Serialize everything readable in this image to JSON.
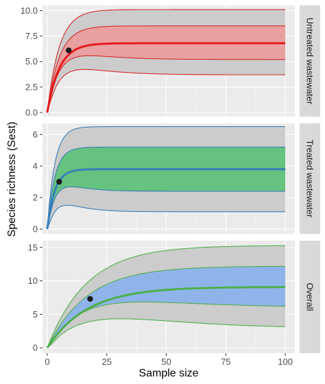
{
  "chart_data": {
    "type": "line",
    "xlabel": "Sample size",
    "ylabel": "Species richness (Sest)",
    "x_ticks": [
      0,
      25,
      50,
      75,
      100
    ],
    "xlim": [
      -2,
      104
    ],
    "grid": true,
    "panels": [
      {
        "strip": "Untreated wastewater",
        "ylim": [
          -0.4,
          10.5
        ],
        "y_ticks": [
          "0.0",
          "2.5",
          "5.0",
          "7.5",
          "10.0"
        ],
        "y_tick_values": [
          0,
          2.5,
          5,
          7.5,
          10
        ],
        "colors": {
          "main": "#e41a1c",
          "band": "#e8a0a0",
          "band_line": "#d42a2a",
          "outer": "#cccccc"
        },
        "asymptote": {
          "mean": 6.8,
          "inner_low": 5.2,
          "inner_high": 8.5,
          "outer_low": 3.7,
          "outer_high": 10.1
        },
        "curve_k": 0.2,
        "lower_bump": {
          "peak_x": 10,
          "peak_y": 4.4
        },
        "observed": {
          "x": 9,
          "y": 6.1
        }
      },
      {
        "strip": "Treated wastewater",
        "ylim": [
          -0.3,
          6.7
        ],
        "y_ticks": [
          "0",
          "2",
          "4",
          "6"
        ],
        "y_tick_values": [
          0,
          2,
          4,
          6
        ],
        "colors": {
          "main": "#377eb8",
          "band": "#66c27f",
          "band_line": "#377eb8",
          "outer": "#cccccc"
        },
        "asymptote": {
          "mean": 3.8,
          "inner_low": 2.4,
          "inner_high": 5.2,
          "outer_low": 1.1,
          "outer_high": 6.5
        },
        "curve_k": 0.32,
        "lower_bump": {
          "peak_x": 6,
          "peak_y": 1.6
        },
        "observed": {
          "x": 5,
          "y": 3.0
        }
      },
      {
        "strip": "Overall",
        "ylim": [
          -0.8,
          16.0
        ],
        "y_ticks": [
          "0",
          "5",
          "10",
          "15"
        ],
        "y_tick_values": [
          0,
          5,
          10,
          15
        ],
        "colors": {
          "main": "#4daf4a",
          "band": "#8fb4ea",
          "band_line": "#4daf4a",
          "outer": "#cccccc"
        },
        "asymptote": {
          "mean": 9.1,
          "inner_low": 6.0,
          "inner_high": 12.2,
          "outer_low": 2.9,
          "outer_high": 15.3
        },
        "curve_k": 0.06,
        "lower_bump": {
          "peak_x": 22,
          "peak_y": 4.8
        },
        "observed": {
          "x": 18,
          "y": 7.3
        }
      }
    ]
  }
}
